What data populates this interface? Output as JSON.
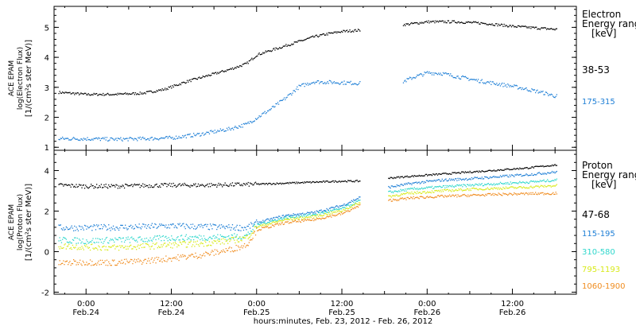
{
  "chart_data": [
    {
      "type": "scatter",
      "panel": "electron",
      "ylabel": [
        "ACE EPAM",
        "log(Electron Flux)",
        "[1/(cm²s ster MeV)]"
      ],
      "ylim": [
        0.9,
        5.7
      ],
      "yticks": [
        1,
        2,
        3,
        4,
        5
      ],
      "xlim": [
        -4.5,
        69
      ],
      "legend_title": [
        "Electron",
        "Energy ranges",
        "[keV]"
      ],
      "gaps": [
        [
          38.5,
          44.5
        ]
      ],
      "series": [
        {
          "name": "38-53",
          "color": "#000000",
          "points": [
            [
              -4,
              2.85
            ],
            [
              0,
              2.78
            ],
            [
              4,
              2.78
            ],
            [
              8,
              2.82
            ],
            [
              11,
              2.95
            ],
            [
              14,
              3.2
            ],
            [
              17,
              3.4
            ],
            [
              20,
              3.6
            ],
            [
              22.5,
              3.8
            ],
            [
              24,
              4.1
            ],
            [
              26,
              4.25
            ],
            [
              28,
              4.4
            ],
            [
              30,
              4.55
            ],
            [
              32,
              4.7
            ],
            [
              34,
              4.8
            ],
            [
              36,
              4.88
            ],
            [
              38.5,
              4.92
            ],
            [
              44.5,
              5.1
            ],
            [
              48,
              5.2
            ],
            [
              52,
              5.2
            ],
            [
              56,
              5.15
            ],
            [
              60,
              5.05
            ],
            [
              63,
              5.0
            ],
            [
              66,
              4.95
            ]
          ]
        },
        {
          "name": "175-315",
          "color": "#1e7fd6",
          "points": [
            [
              -4,
              1.3
            ],
            [
              0,
              1.3
            ],
            [
              4,
              1.28
            ],
            [
              8,
              1.3
            ],
            [
              12,
              1.33
            ],
            [
              16,
              1.45
            ],
            [
              20,
              1.62
            ],
            [
              22.5,
              1.78
            ],
            [
              24,
              2.0
            ],
            [
              26,
              2.3
            ],
            [
              28,
              2.65
            ],
            [
              30,
              3.05
            ],
            [
              32,
              3.2
            ],
            [
              35,
              3.18
            ],
            [
              38.5,
              3.15
            ],
            [
              44.5,
              3.2
            ],
            [
              46,
              3.35
            ],
            [
              48,
              3.5
            ],
            [
              50,
              3.48
            ],
            [
              52,
              3.38
            ],
            [
              56,
              3.2
            ],
            [
              60,
              3.05
            ],
            [
              64,
              2.85
            ],
            [
              66,
              2.72
            ]
          ]
        }
      ]
    },
    {
      "type": "scatter",
      "panel": "proton",
      "ylabel": [
        "ACE EPAM",
        "log(Proton Flux)",
        "[1/(cm²s ster MeV)]"
      ],
      "ylim": [
        -2.1,
        5.0
      ],
      "yticks": [
        -2,
        0,
        2,
        4
      ],
      "xlim": [
        -4.5,
        69
      ],
      "xticks": [
        0,
        12,
        24,
        36,
        48,
        60
      ],
      "xtick_labels": [
        [
          "0:00",
          "Feb.24"
        ],
        [
          "12:00",
          "Feb.24"
        ],
        [
          "0:00",
          "Feb.25"
        ],
        [
          "12:00",
          "Feb.25"
        ],
        [
          "0:00",
          "Feb.26"
        ],
        [
          "12:00",
          "Feb.26"
        ]
      ],
      "xlabel": "hours:minutes, Feb. 23, 2012 - Feb. 26, 2012",
      "legend_title": [
        "Proton",
        "Energy ranges",
        "[keV]"
      ],
      "gaps": [
        [
          38.5,
          42.5
        ]
      ],
      "series": [
        {
          "name": "47-68",
          "color": "#000000",
          "points": [
            [
              -4,
              3.3
            ],
            [
              0,
              3.25
            ],
            [
              4,
              3.25
            ],
            [
              8,
              3.28
            ],
            [
              12,
              3.3
            ],
            [
              16,
              3.3
            ],
            [
              20,
              3.32
            ],
            [
              24,
              3.35
            ],
            [
              28,
              3.4
            ],
            [
              32,
              3.45
            ],
            [
              36,
              3.5
            ],
            [
              38.5,
              3.5
            ],
            [
              42.5,
              3.65
            ],
            [
              46,
              3.75
            ],
            [
              50,
              3.85
            ],
            [
              54,
              3.95
            ],
            [
              58,
              4.05
            ],
            [
              62,
              4.15
            ],
            [
              66,
              4.3
            ]
          ]
        },
        {
          "name": "115-195",
          "color": "#1e7fd6",
          "points": [
            [
              -4,
              1.2
            ],
            [
              0,
              1.2
            ],
            [
              4,
              1.22
            ],
            [
              8,
              1.25
            ],
            [
              12,
              1.3
            ],
            [
              16,
              1.25
            ],
            [
              20,
              1.22
            ],
            [
              22.5,
              1.2
            ],
            [
              24,
              1.45
            ],
            [
              28,
              1.8
            ],
            [
              32,
              1.95
            ],
            [
              36,
              2.3
            ],
            [
              38.5,
              2.7
            ],
            [
              42.5,
              3.2
            ],
            [
              46,
              3.4
            ],
            [
              50,
              3.55
            ],
            [
              54,
              3.62
            ],
            [
              58,
              3.72
            ],
            [
              62,
              3.82
            ],
            [
              66,
              3.95
            ]
          ]
        },
        {
          "name": "310-580",
          "color": "#2fd7cc",
          "points": [
            [
              -4,
              0.6
            ],
            [
              0,
              0.55
            ],
            [
              4,
              0.6
            ],
            [
              8,
              0.62
            ],
            [
              12,
              0.7
            ],
            [
              16,
              0.72
            ],
            [
              20,
              0.75
            ],
            [
              22.5,
              0.8
            ],
            [
              24,
              1.35
            ],
            [
              28,
              1.7
            ],
            [
              32,
              1.85
            ],
            [
              36,
              2.15
            ],
            [
              38.5,
              2.55
            ],
            [
              42.5,
              2.95
            ],
            [
              46,
              3.12
            ],
            [
              50,
              3.22
            ],
            [
              54,
              3.3
            ],
            [
              58,
              3.38
            ],
            [
              62,
              3.45
            ],
            [
              66,
              3.55
            ]
          ]
        },
        {
          "name": "795-1193",
          "color": "#d8ea1a",
          "points": [
            [
              -4,
              0.3
            ],
            [
              0,
              0.25
            ],
            [
              4,
              0.22
            ],
            [
              8,
              0.28
            ],
            [
              12,
              0.35
            ],
            [
              16,
              0.42
            ],
            [
              20,
              0.55
            ],
            [
              22.5,
              0.7
            ],
            [
              24,
              1.25
            ],
            [
              28,
              1.6
            ],
            [
              32,
              1.75
            ],
            [
              36,
              2.05
            ],
            [
              38.5,
              2.45
            ],
            [
              42.5,
              2.75
            ],
            [
              46,
              2.92
            ],
            [
              50,
              3.02
            ],
            [
              54,
              3.1
            ],
            [
              58,
              3.15
            ],
            [
              62,
              3.2
            ],
            [
              66,
              3.28
            ]
          ]
        },
        {
          "name": "1060-1900",
          "color": "#f08c1e",
          "points": [
            [
              -4,
              -0.55
            ],
            [
              0,
              -0.5
            ],
            [
              4,
              -0.52
            ],
            [
              8,
              -0.45
            ],
            [
              12,
              -0.3
            ],
            [
              16,
              -0.15
            ],
            [
              20,
              0.1
            ],
            [
              22.5,
              0.35
            ],
            [
              24,
              1.1
            ],
            [
              28,
              1.45
            ],
            [
              32,
              1.6
            ],
            [
              36,
              1.9
            ],
            [
              38.5,
              2.3
            ],
            [
              42.5,
              2.55
            ],
            [
              46,
              2.68
            ],
            [
              50,
              2.75
            ],
            [
              54,
              2.8
            ],
            [
              58,
              2.85
            ],
            [
              62,
              2.88
            ],
            [
              66,
              2.9
            ]
          ]
        }
      ]
    }
  ]
}
